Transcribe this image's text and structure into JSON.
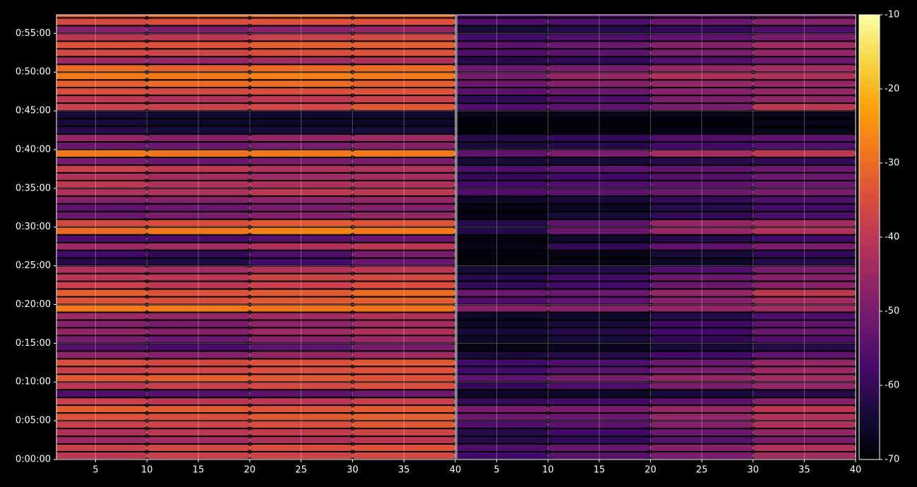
{
  "chart_data": {
    "type": "heatmap",
    "cmap": "inferno",
    "grid": true,
    "clim": [
      -70,
      -10
    ],
    "cticks": [
      -70,
      -60,
      -50,
      -40,
      -30,
      -20,
      -10
    ],
    "ylim": [
      0,
      3444
    ],
    "yticks": [
      {
        "value": 0,
        "label": "0:00:00"
      },
      {
        "value": 300,
        "label": "0:05:00"
      },
      {
        "value": 600,
        "label": "0:10:00"
      },
      {
        "value": 900,
        "label": "0:15:00"
      },
      {
        "value": 1200,
        "label": "0:20:00"
      },
      {
        "value": 1500,
        "label": "0:25:00"
      },
      {
        "value": 1800,
        "label": "0:30:00"
      },
      {
        "value": 2100,
        "label": "0:35:00"
      },
      {
        "value": 2400,
        "label": "0:40:00"
      },
      {
        "value": 2700,
        "label": "0:45:00"
      },
      {
        "value": 3000,
        "label": "0:50:00"
      },
      {
        "value": 3300,
        "label": "0:55:00"
      }
    ],
    "y_edges": [
      0,
      60,
      120,
      180,
      240,
      300,
      360,
      420,
      480,
      540,
      600,
      660,
      720,
      780,
      840,
      900,
      960,
      1020,
      1080,
      1140,
      1200,
      1260,
      1320,
      1380,
      1440,
      1500,
      1560,
      1620,
      1680,
      1740,
      1800,
      1860,
      1920,
      1980,
      2040,
      2100,
      2160,
      2220,
      2280,
      2340,
      2400,
      2460,
      2520,
      2580,
      2640,
      2700,
      2760,
      2820,
      2880,
      2940,
      3000,
      3060,
      3120,
      3180,
      3240,
      3300,
      3360,
      3420,
      3480
    ],
    "panels": [
      {
        "xlim": [
          1.2,
          40
        ],
        "xticks": [
          5,
          10,
          15,
          20,
          25,
          30,
          35,
          40
        ],
        "x_edges": [
          1,
          10,
          20,
          30,
          40
        ],
        "values": [
          [
            -40,
            -38,
            -37,
            -36
          ],
          [
            -38,
            -36,
            -35,
            -34
          ],
          [
            -45,
            -44,
            -42,
            -40
          ],
          [
            -42,
            -40,
            -39,
            -37
          ],
          [
            -38,
            -37,
            -35,
            -33
          ],
          [
            -34,
            -35,
            -33,
            -32
          ],
          [
            -32,
            -33,
            -34,
            -33
          ],
          [
            -38,
            -40,
            -40,
            -38
          ],
          [
            -56,
            -55,
            -54,
            -52
          ],
          [
            -40,
            -38,
            -36,
            -35
          ],
          [
            -33,
            -32,
            -33,
            -34
          ],
          [
            -38,
            -37,
            -35,
            -34
          ],
          [
            -35,
            -36,
            -34,
            -33
          ],
          [
            -47,
            -48,
            -46,
            -44
          ],
          [
            -55,
            -57,
            -54,
            -50
          ],
          [
            -50,
            -52,
            -48,
            -45
          ],
          [
            -46,
            -48,
            -45,
            -42
          ],
          [
            -48,
            -50,
            -47,
            -44
          ],
          [
            -45,
            -46,
            -44,
            -42
          ],
          [
            -28,
            -28,
            -29,
            -29
          ],
          [
            -34,
            -35,
            -33,
            -32
          ],
          [
            -32,
            -34,
            -33,
            -30
          ],
          [
            -38,
            -40,
            -38,
            -35
          ],
          [
            -40,
            -40,
            -37,
            -36
          ],
          [
            -42,
            -44,
            -42,
            -40
          ],
          [
            -62,
            -63,
            -58,
            -52
          ],
          [
            -58,
            -60,
            -56,
            -50
          ],
          [
            -45,
            -44,
            -42,
            -40
          ],
          [
            -56,
            -57,
            -55,
            -52
          ],
          [
            -30,
            -28,
            -27,
            -28
          ],
          [
            -36,
            -35,
            -33,
            -34
          ],
          [
            -52,
            -50,
            -48,
            -46
          ],
          [
            -54,
            -52,
            -50,
            -48
          ],
          [
            -48,
            -48,
            -47,
            -46
          ],
          [
            -42,
            -42,
            -40,
            -40
          ],
          [
            -40,
            -42,
            -42,
            -42
          ],
          [
            -42,
            -44,
            -45,
            -44
          ],
          [
            -38,
            -40,
            -42,
            -42
          ],
          [
            -50,
            -52,
            -50,
            -50
          ],
          [
            -28,
            -29,
            -28,
            -28
          ],
          [
            -52,
            -52,
            -50,
            -48
          ],
          [
            -46,
            -48,
            -46,
            -45
          ],
          [
            -62,
            -64,
            -64,
            -64
          ],
          [
            -64,
            -66,
            -66,
            -66
          ],
          [
            -64,
            -65,
            -65,
            -65
          ],
          [
            -38,
            -38,
            -36,
            -33
          ],
          [
            -40,
            -42,
            -40,
            -38
          ],
          [
            -35,
            -36,
            -35,
            -34
          ],
          [
            -32,
            -30,
            -30,
            -32
          ],
          [
            -28,
            -28,
            -27,
            -28
          ],
          [
            -30,
            -32,
            -30,
            -30
          ],
          [
            -45,
            -46,
            -44,
            -42
          ],
          [
            -36,
            -37,
            -35,
            -34
          ],
          [
            -34,
            -34,
            -32,
            -32
          ],
          [
            -40,
            -40,
            -38,
            -36
          ],
          [
            -48,
            -50,
            -48,
            -46
          ],
          [
            -36,
            -35,
            -34,
            -34
          ],
          [
            -32,
            -30,
            -30,
            -30
          ]
        ]
      },
      {
        "xlim": [
          1.1,
          40
        ],
        "xticks": [
          5,
          10,
          15,
          20,
          25,
          30,
          35,
          40
        ],
        "x_edges": [
          1,
          10,
          20,
          30,
          40
        ],
        "values": [
          [
            -58,
            -55,
            -50,
            -44
          ],
          [
            -56,
            -52,
            -48,
            -42
          ],
          [
            -62,
            -60,
            -55,
            -50
          ],
          [
            -62,
            -58,
            -52,
            -46
          ],
          [
            -56,
            -54,
            -48,
            -42
          ],
          [
            -52,
            -52,
            -46,
            -42
          ],
          [
            -50,
            -50,
            -46,
            -40
          ],
          [
            -60,
            -58,
            -54,
            -48
          ],
          [
            -66,
            -66,
            -64,
            -62
          ],
          [
            -60,
            -56,
            -50,
            -46
          ],
          [
            -54,
            -50,
            -46,
            -44
          ],
          [
            -58,
            -55,
            -50,
            -45
          ],
          [
            -58,
            -56,
            -52,
            -46
          ],
          [
            -64,
            -62,
            -58,
            -54
          ],
          [
            -68,
            -67,
            -64,
            -62
          ],
          [
            -66,
            -64,
            -60,
            -56
          ],
          [
            -64,
            -62,
            -58,
            -52
          ],
          [
            -66,
            -64,
            -58,
            -54
          ],
          [
            -66,
            -66,
            -62,
            -56
          ],
          [
            -48,
            -48,
            -46,
            -44
          ],
          [
            -56,
            -54,
            -48,
            -44
          ],
          [
            -52,
            -52,
            -46,
            -40
          ],
          [
            -60,
            -58,
            -52,
            -48
          ],
          [
            -62,
            -58,
            -52,
            -48
          ],
          [
            -64,
            -62,
            -56,
            -50
          ],
          [
            -69,
            -68,
            -66,
            -62
          ],
          [
            -69,
            -68,
            -64,
            -60
          ],
          [
            -68,
            -60,
            -54,
            -50
          ],
          [
            -69,
            -66,
            -62,
            -58
          ],
          [
            -62,
            -52,
            -46,
            -42
          ],
          [
            -62,
            -54,
            -46,
            -44
          ],
          [
            -68,
            -64,
            -60,
            -56
          ],
          [
            -68,
            -66,
            -62,
            -58
          ],
          [
            -66,
            -64,
            -60,
            -56
          ],
          [
            -56,
            -54,
            -52,
            -50
          ],
          [
            -58,
            -56,
            -54,
            -52
          ],
          [
            -60,
            -58,
            -55,
            -52
          ],
          [
            -56,
            -54,
            -54,
            -52
          ],
          [
            -64,
            -64,
            -62,
            -60
          ],
          [
            -54,
            -50,
            -44,
            -40
          ],
          [
            -64,
            -62,
            -58,
            -56
          ],
          [
            -62,
            -60,
            -56,
            -54
          ],
          [
            -69,
            -69,
            -68,
            -68
          ],
          [
            -69,
            -69,
            -69,
            -68
          ],
          [
            -68,
            -68,
            -68,
            -68
          ],
          [
            -56,
            -54,
            -50,
            -40
          ],
          [
            -60,
            -56,
            -50,
            -46
          ],
          [
            -54,
            -52,
            -48,
            -46
          ],
          [
            -52,
            -48,
            -46,
            -46
          ],
          [
            -50,
            -46,
            -42,
            -42
          ],
          [
            -52,
            -50,
            -46,
            -44
          ],
          [
            -62,
            -60,
            -56,
            -52
          ],
          [
            -56,
            -54,
            -50,
            -46
          ],
          [
            -54,
            -52,
            -48,
            -44
          ],
          [
            -58,
            -56,
            -54,
            -50
          ],
          [
            -64,
            -62,
            -60,
            -56
          ],
          [
            -56,
            -56,
            -52,
            -48
          ],
          [
            -58,
            -56,
            -54,
            -52
          ]
        ]
      }
    ]
  }
}
